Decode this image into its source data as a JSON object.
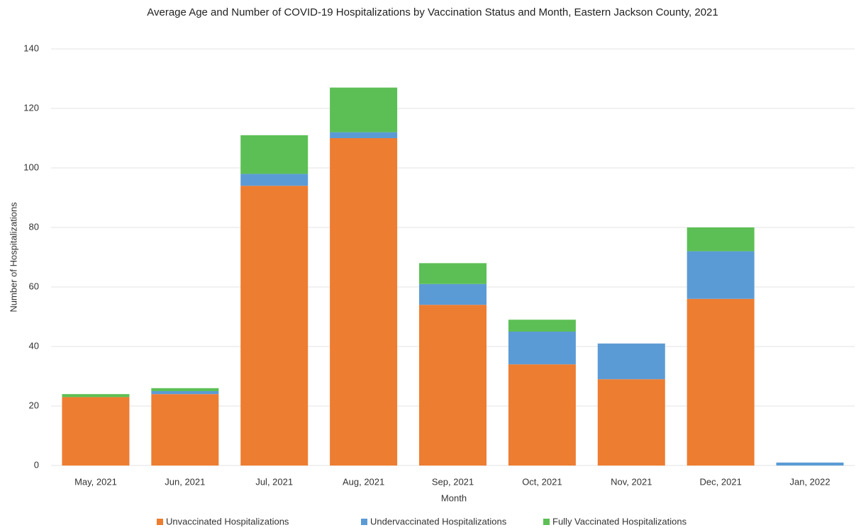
{
  "chart_data": {
    "type": "stacked_bar",
    "title": "Average Age and Number of COVID-19 Hospitalizations by Vaccination Status and Month, Eastern Jackson County, 2021",
    "x_label": "Month",
    "y_label": "Number of Hospitalizations",
    "categories": [
      "May, 2021",
      "Jun, 2021",
      "Jul, 2021",
      "Aug, 2021",
      "Sep, 2021",
      "Oct, 2021",
      "Nov, 2021",
      "Dec, 2021",
      "Jan, 2022"
    ],
    "series": [
      {
        "name": "Unvaccinated Hospitalizations",
        "color": "#ed7d31",
        "values": [
          23,
          24,
          94,
          110,
          54,
          34,
          29,
          56,
          0
        ]
      },
      {
        "name": "Undervaccinated Hospitalizations",
        "color": "#5b9bd5",
        "values": [
          0,
          1,
          4,
          2,
          7,
          11,
          12,
          16,
          1
        ]
      },
      {
        "name": "Fully Vaccinated Hospitalizations",
        "color": "#5cbf55",
        "values": [
          1,
          1,
          13,
          15,
          7,
          4,
          0,
          8,
          0
        ]
      }
    ],
    "ylim": [
      0,
      140
    ],
    "yticks": [
      0,
      20,
      40,
      60,
      80,
      100,
      120,
      140
    ],
    "grid": true,
    "legend": "bottom"
  }
}
